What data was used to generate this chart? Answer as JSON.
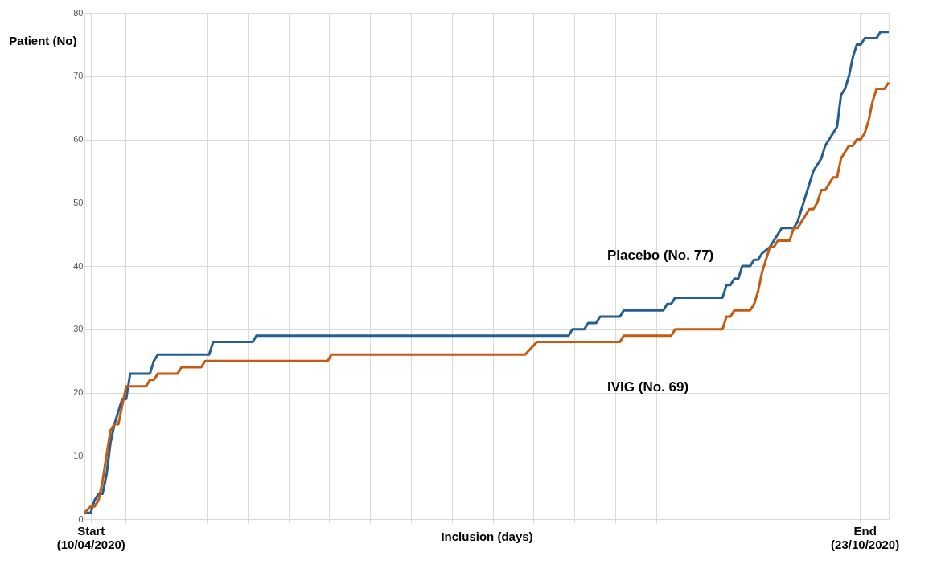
{
  "chart_data": {
    "type": "line",
    "xlabel": "Inclusion (days)",
    "ylabel": "Patient (No)",
    "xlim": [
      "2020-04-08T10:00",
      "2020-10-29T02:00"
    ],
    "ylim": [
      0,
      80
    ],
    "xticks": [
      {
        "value": "2020-04-10",
        "label": "Start (10/04/2020)"
      },
      {
        "value": "2020-04-18T17:00",
        "label": null
      },
      {
        "value": "2020-04-29T01:00",
        "label": null
      },
      {
        "value": "2020-05-09T10:00",
        "label": null
      },
      {
        "value": "2020-05-19T18:00",
        "label": null
      },
      {
        "value": "2020-05-30T02:00",
        "label": null
      },
      {
        "value": "2020-06-09T10:00",
        "label": null
      },
      {
        "value": "2020-06-19T18:00",
        "label": null
      },
      {
        "value": "2020-06-30T02:00",
        "label": null
      },
      {
        "value": "2020-07-10T11:00",
        "label": null
      },
      {
        "value": "2020-07-20T19:00",
        "label": null
      },
      {
        "value": "2020-07-31T03:00",
        "label": null
      },
      {
        "value": "2020-08-10T11:00",
        "label": null
      },
      {
        "value": "2020-08-20T19:00",
        "label": null
      },
      {
        "value": "2020-08-31T03:00",
        "label": null
      },
      {
        "value": "2020-09-10T12:00",
        "label": null
      },
      {
        "value": "2020-09-20T20:00",
        "label": null
      },
      {
        "value": "2020-10-01T04:00",
        "label": null
      },
      {
        "value": "2020-10-11T12:00",
        "label": null
      },
      {
        "value": "2020-10-21T20:00",
        "label": null
      },
      {
        "value": "2020-10-23",
        "label": "End (23/10/2020)"
      }
    ],
    "yticks": [
      0,
      10,
      20,
      30,
      40,
      50,
      60,
      70,
      80
    ],
    "grid": true,
    "legend": false,
    "marker": "none",
    "line_style": "solid",
    "series": [
      {
        "name": "Placebo (No. 77)",
        "color": "#255e91",
        "x": [
          "2020-04-08T10:00",
          "2020-04-10",
          "2020-04-11",
          "2020-04-12",
          "2020-04-13",
          "2020-04-14",
          "2020-04-15",
          "2020-04-16",
          "2020-04-17",
          "2020-04-18",
          "2020-04-19",
          "2020-04-20",
          "2020-04-25",
          "2020-04-26",
          "2020-04-27",
          "2020-05-10",
          "2020-05-11",
          "2020-05-21",
          "2020-05-22",
          "2020-08-09",
          "2020-08-10",
          "2020-08-13",
          "2020-08-14",
          "2020-08-16",
          "2020-08-17",
          "2020-08-22",
          "2020-08-23",
          "2020-09-02",
          "2020-09-03",
          "2020-09-04",
          "2020-09-05",
          "2020-09-17",
          "2020-09-18",
          "2020-09-19",
          "2020-09-20",
          "2020-09-21",
          "2020-09-22",
          "2020-09-24",
          "2020-09-25",
          "2020-09-26",
          "2020-09-27",
          "2020-09-29",
          "2020-09-30",
          "2020-10-01",
          "2020-10-02",
          "2020-10-05",
          "2020-10-06",
          "2020-10-07",
          "2020-10-08",
          "2020-10-09",
          "2020-10-10",
          "2020-10-11",
          "2020-10-12",
          "2020-10-13",
          "2020-10-14",
          "2020-10-15",
          "2020-10-16",
          "2020-10-17",
          "2020-10-18",
          "2020-10-19",
          "2020-10-20",
          "2020-10-21",
          "2020-10-22",
          "2020-10-23",
          "2020-10-26",
          "2020-10-27",
          "2020-10-28",
          "2020-10-29T02:00"
        ],
        "values": [
          1,
          1,
          3,
          4,
          4,
          7,
          12,
          15,
          17,
          19,
          19,
          23,
          23,
          25,
          26,
          26,
          28,
          28,
          29,
          29,
          30,
          30,
          31,
          31,
          32,
          32,
          33,
          33,
          34,
          34,
          35,
          35,
          37,
          37,
          38,
          38,
          40,
          40,
          41,
          41,
          42,
          43,
          44,
          45,
          46,
          46,
          47,
          49,
          51,
          53,
          55,
          56,
          57,
          59,
          60,
          61,
          62,
          67,
          68,
          70,
          73,
          75,
          75,
          76,
          76,
          77,
          77,
          77
        ]
      },
      {
        "name": "IVIG (No. 69)",
        "color": "#c55a11",
        "x": [
          "2020-04-08T10:00",
          "2020-04-10",
          "2020-04-11",
          "2020-04-12",
          "2020-04-13",
          "2020-04-14",
          "2020-04-15",
          "2020-04-16",
          "2020-04-17",
          "2020-04-18",
          "2020-04-19",
          "2020-04-24",
          "2020-04-25",
          "2020-04-26",
          "2020-04-27",
          "2020-05-02",
          "2020-05-03",
          "2020-05-08",
          "2020-05-09",
          "2020-06-09",
          "2020-06-10",
          "2020-07-29",
          "2020-08-01",
          "2020-08-22",
          "2020-08-23",
          "2020-09-04",
          "2020-09-05",
          "2020-09-17",
          "2020-09-18",
          "2020-09-19",
          "2020-09-20",
          "2020-09-24",
          "2020-09-25",
          "2020-09-26",
          "2020-09-27",
          "2020-09-28",
          "2020-09-29",
          "2020-09-30",
          "2020-10-01",
          "2020-10-04",
          "2020-10-05",
          "2020-10-06",
          "2020-10-07",
          "2020-10-08",
          "2020-10-09",
          "2020-10-10",
          "2020-10-11",
          "2020-10-12",
          "2020-10-13",
          "2020-10-14",
          "2020-10-15",
          "2020-10-16",
          "2020-10-17",
          "2020-10-18",
          "2020-10-19",
          "2020-10-20",
          "2020-10-21",
          "2020-10-22",
          "2020-10-23",
          "2020-10-24",
          "2020-10-25",
          "2020-10-26",
          "2020-10-27",
          "2020-10-28",
          "2020-10-29T02:00"
        ],
        "values": [
          1,
          2,
          2,
          3,
          6,
          10,
          14,
          15,
          15,
          18,
          21,
          21,
          22,
          22,
          23,
          23,
          24,
          24,
          25,
          25,
          26,
          26,
          28,
          28,
          29,
          29,
          30,
          30,
          32,
          32,
          33,
          33,
          34,
          36,
          39,
          41,
          43,
          43,
          44,
          44,
          46,
          46,
          47,
          48,
          49,
          49,
          50,
          52,
          52,
          53,
          54,
          54,
          57,
          58,
          59,
          59,
          60,
          60,
          61,
          63,
          66,
          68,
          68,
          68,
          69
        ]
      }
    ]
  }
}
